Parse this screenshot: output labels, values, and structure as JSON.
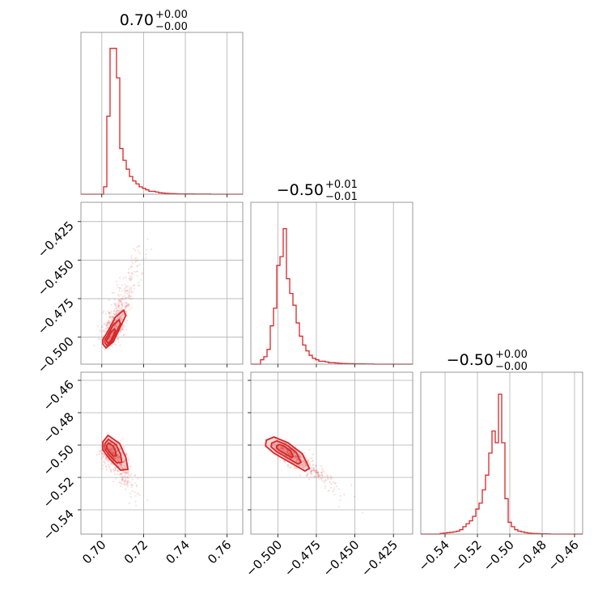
{
  "chart_data": {
    "type": "corner",
    "color": "#d62728",
    "grid": true,
    "parameters": [
      {
        "title": {
          "value": "0.70",
          "plus": "+0.00",
          "minus": "−0.00"
        },
        "range": [
          0.69,
          0.7675
        ],
        "ticks": [
          {
            "v": 0.7,
            "label": "0.70"
          },
          {
            "v": 0.72,
            "label": "0.72"
          },
          {
            "v": 0.74,
            "label": "0.74"
          },
          {
            "v": 0.76,
            "label": "0.76"
          }
        ],
        "hist": {
          "start": 0.69,
          "step": 0.00155,
          "counts": [
            0,
            0,
            0,
            0,
            0,
            0,
            0,
            0.05,
            0.53,
            0.99,
            0.99,
            0.79,
            0.31,
            0.23,
            0.17,
            0.12,
            0.09,
            0.07,
            0.05,
            0.04,
            0.03,
            0.02,
            0.02,
            0.015,
            0.01,
            0.008,
            0.006,
            0.005,
            0.004,
            0.003,
            0.002,
            0.002,
            0.002,
            0.002,
            0.002,
            0.001,
            0.001,
            0.001,
            0.001,
            0.001,
            0,
            0,
            0,
            0,
            0,
            0,
            0,
            0,
            0,
            0
          ]
        }
      },
      {
        "title": {
          "value": "−0.50",
          "plus": "+0.01",
          "minus": "−0.01"
        },
        "range": [
          -0.5175,
          -0.4125
        ],
        "ticks": [
          {
            "v": -0.5,
            "label": "−0.500"
          },
          {
            "v": -0.475,
            "label": "−0.475"
          },
          {
            "v": -0.45,
            "label": "−0.450"
          },
          {
            "v": -0.425,
            "label": "−0.425"
          }
        ],
        "hist": {
          "start": -0.5175,
          "step": 0.0021,
          "counts": [
            0,
            0,
            0,
            0.03,
            0.05,
            0.1,
            0.26,
            0.38,
            0.67,
            0.73,
            0.92,
            0.58,
            0.48,
            0.4,
            0.28,
            0.19,
            0.13,
            0.09,
            0.06,
            0.04,
            0.03,
            0.02,
            0.02,
            0.015,
            0.01,
            0.01,
            0.008,
            0.006,
            0.005,
            0.004,
            0.003,
            0.003,
            0.002,
            0.002,
            0.002,
            0.001,
            0.001,
            0.001,
            0,
            0,
            0,
            0,
            0,
            0,
            0,
            0,
            0,
            0,
            0,
            0
          ]
        }
      },
      {
        "title": {
          "value": "−0.50",
          "plus": "+0.00",
          "minus": "−0.00"
        },
        "range": [
          -0.555,
          -0.455
        ],
        "ticks": [
          {
            "v": -0.54,
            "label": "−0.54"
          },
          {
            "v": -0.52,
            "label": "−0.52"
          },
          {
            "v": -0.5,
            "label": "−0.50"
          },
          {
            "v": -0.48,
            "label": "−0.48"
          },
          {
            "v": -0.46,
            "label": "−0.46"
          }
        ],
        "hist": {
          "start": -0.555,
          "step": 0.002,
          "counts": [
            0,
            0,
            0,
            0,
            0,
            0,
            0.005,
            0.007,
            0.01,
            0.012,
            0.015,
            0.02,
            0.03,
            0.05,
            0.07,
            0.09,
            0.12,
            0.17,
            0.21,
            0.3,
            0.4,
            0.55,
            0.7,
            0.62,
            0.95,
            0.62,
            0.24,
            0.08,
            0.05,
            0.03,
            0.02,
            0.015,
            0.01,
            0.007,
            0.005,
            0.004,
            0.003,
            0.002,
            0.002,
            0.001,
            0,
            0,
            0,
            0,
            0,
            0,
            0,
            0,
            0,
            0
          ]
        }
      }
    ],
    "pairs": [
      {
        "x": 0,
        "y": 1,
        "center": [
          0.7035,
          -0.502
        ],
        "direction": [
          0.0065,
          0.0255
        ],
        "spread": [
          0.0025,
          0.003
        ],
        "contour_points": [
          [
            0.7005,
            -0.5045
          ],
          [
            0.702,
            -0.507
          ],
          [
            0.7055,
            -0.503
          ],
          [
            0.709,
            -0.493
          ],
          [
            0.7115,
            -0.486
          ],
          [
            0.7105,
            -0.4825
          ],
          [
            0.7065,
            -0.487
          ],
          [
            0.703,
            -0.496
          ],
          [
            0.7005,
            -0.5015
          ]
        ]
      },
      {
        "x": 0,
        "y": 2,
        "center": [
          0.7035,
          -0.5015
        ],
        "direction": [
          0.005,
          -0.012
        ],
        "spread": [
          0.0025,
          0.003
        ],
        "contour_points": [
          [
            0.7005,
            -0.498
          ],
          [
            0.703,
            -0.494
          ],
          [
            0.7085,
            -0.499
          ],
          [
            0.7115,
            -0.5075
          ],
          [
            0.7125,
            -0.515
          ],
          [
            0.709,
            -0.5155
          ],
          [
            0.704,
            -0.509
          ],
          [
            0.7005,
            -0.503
          ]
        ]
      },
      {
        "x": 1,
        "y": 2,
        "center": [
          -0.4965,
          -0.5025
        ],
        "direction": [
          0.016,
          -0.011
        ],
        "spread": [
          0.003,
          0.0025
        ],
        "contour_points": [
          [
            -0.5075,
            -0.497
          ],
          [
            -0.5025,
            -0.495
          ],
          [
            -0.4935,
            -0.4985
          ],
          [
            -0.484,
            -0.5055
          ],
          [
            -0.4795,
            -0.5145
          ],
          [
            -0.4825,
            -0.516
          ],
          [
            -0.4925,
            -0.5105
          ],
          [
            -0.5025,
            -0.505
          ],
          [
            -0.508,
            -0.5005
          ]
        ]
      }
    ]
  }
}
